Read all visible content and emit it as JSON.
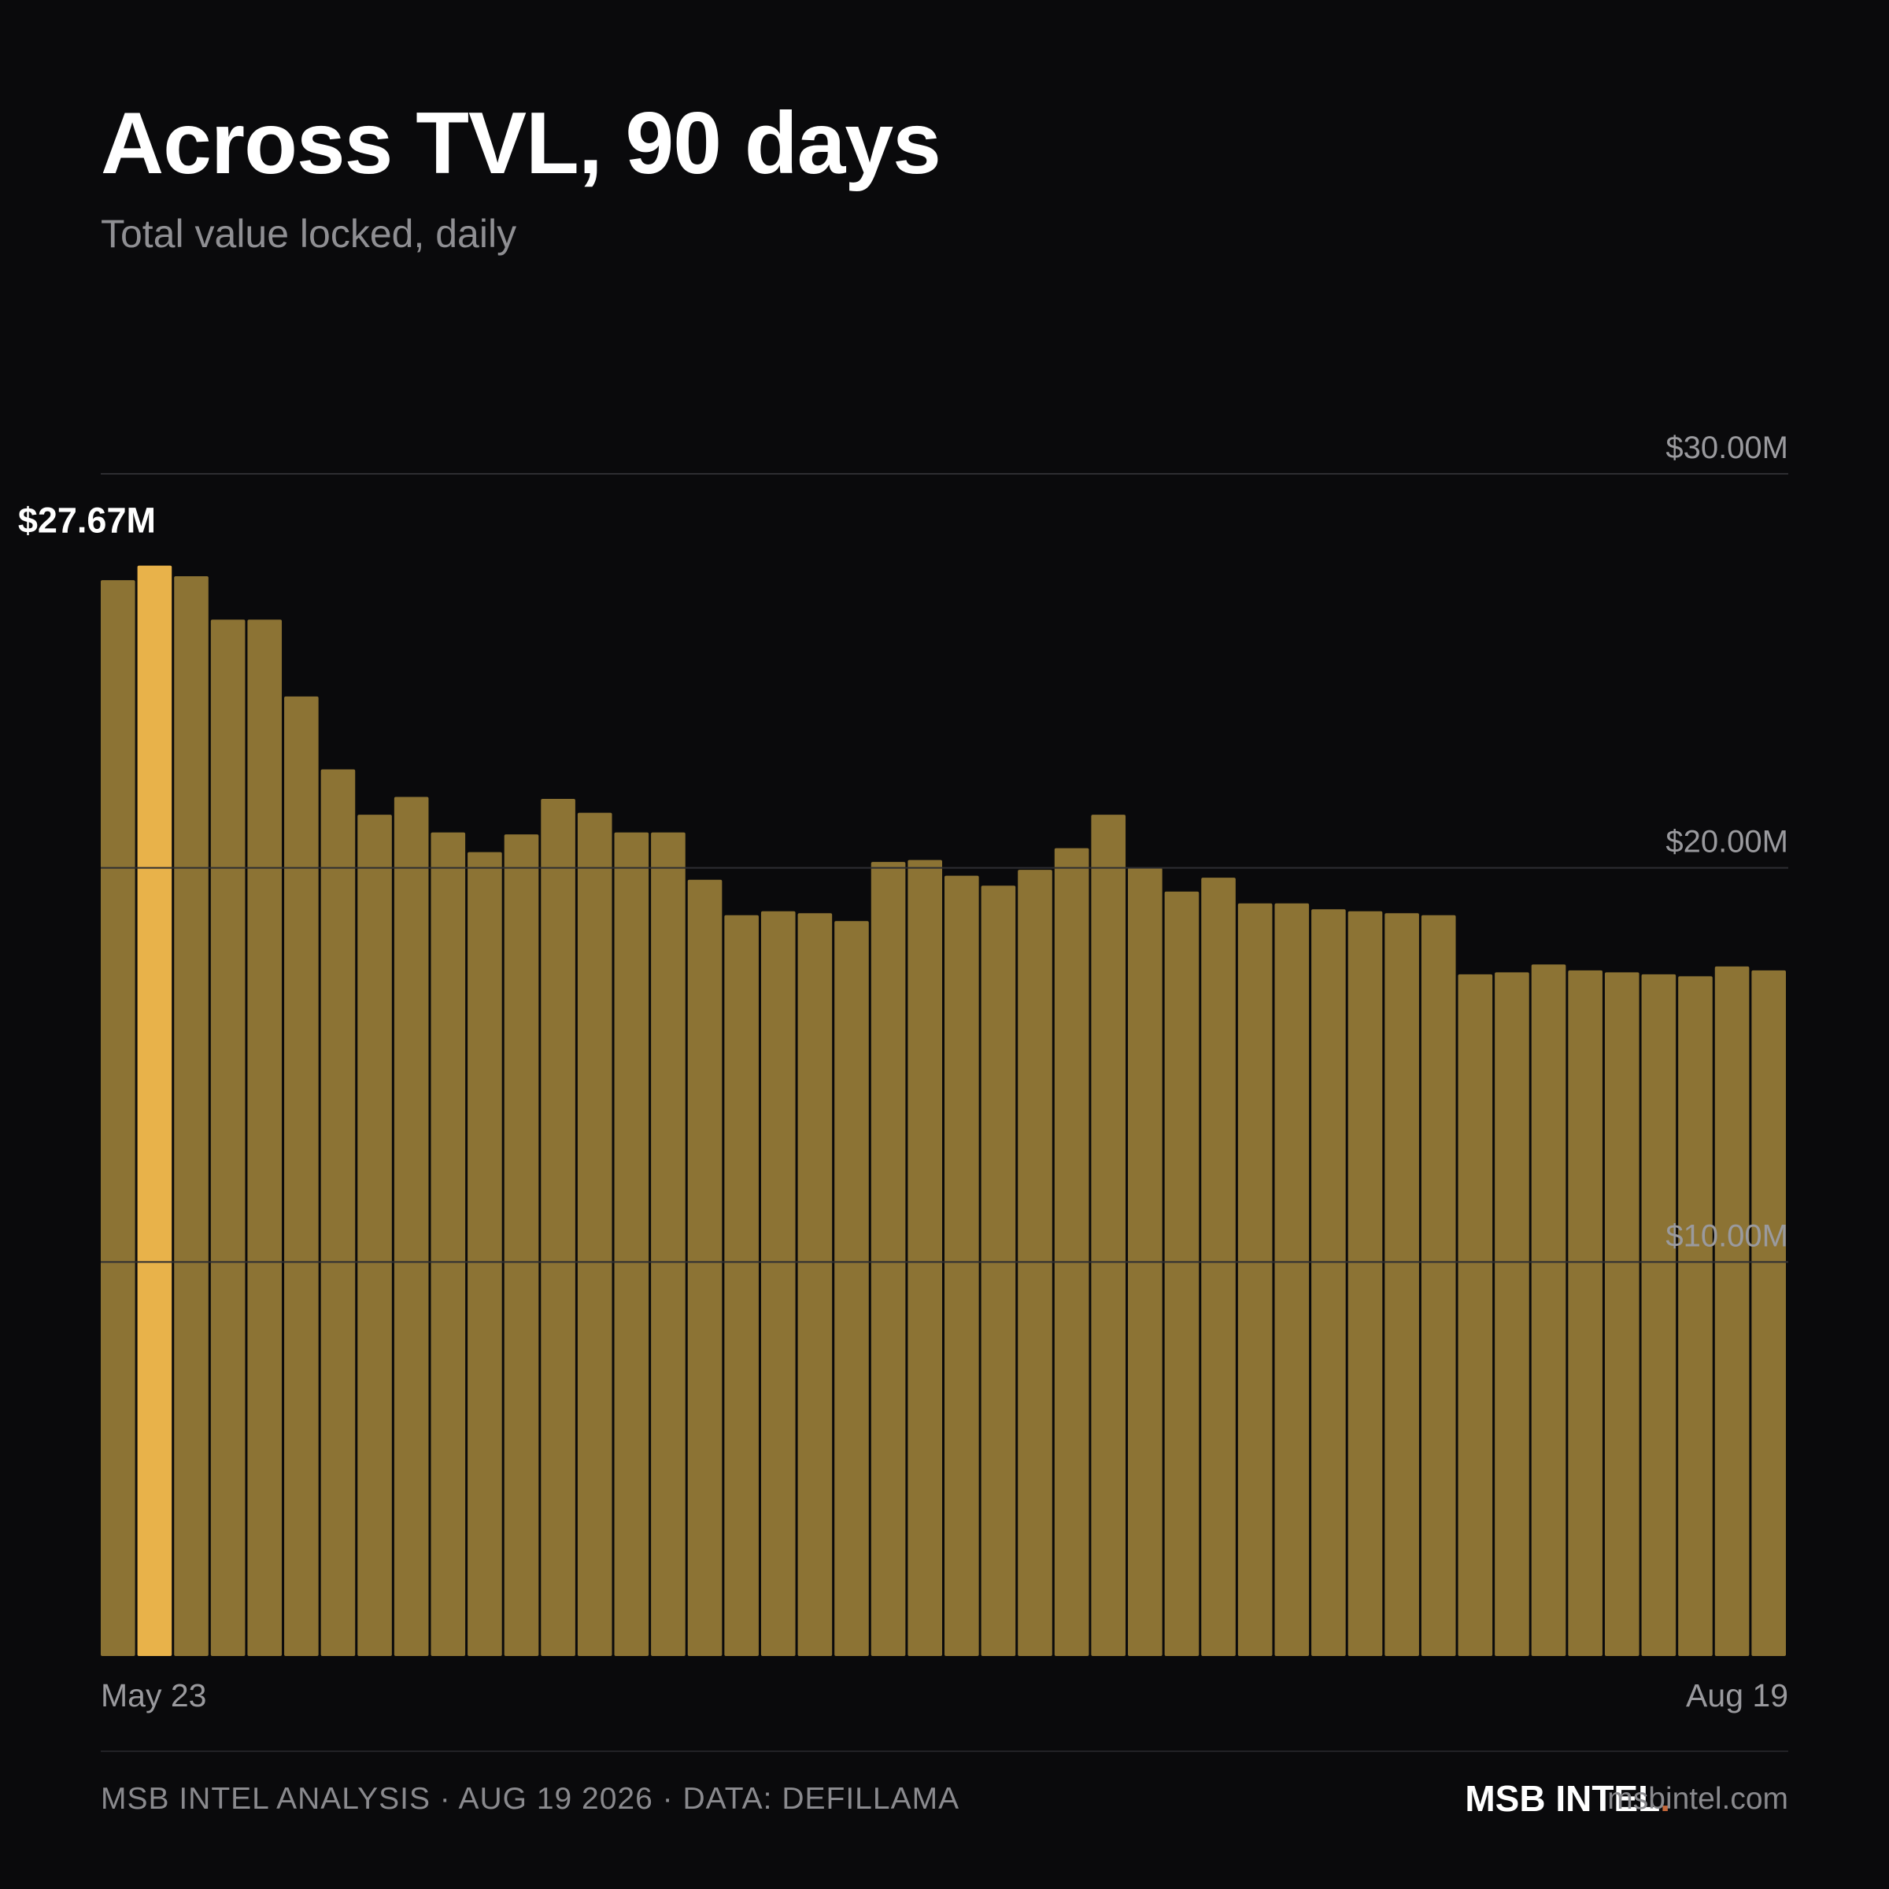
{
  "header": {
    "title": "Across TVL, 90 days",
    "subtitle": "Total value locked, daily"
  },
  "footer": {
    "credit": "MSB INTEL ANALYSIS · AUG 19 2026 · DATA: DEFILLAMA",
    "brand": "MSB INTEL",
    "brand_dot": ".",
    "site": "msbintel.com"
  },
  "colors": {
    "background": "#0a0a0c",
    "bar": "#8c7334",
    "bar_highlight": "#e8b24a",
    "gridline": "#2e2e32",
    "tick_label": "#9a9a9e",
    "brand_dot": "#c4673a"
  },
  "chart_data": {
    "type": "bar",
    "title": "Across TVL, 90 days",
    "subtitle": "Total value locked, daily",
    "ylim": [
      0,
      30
    ],
    "y_unit": "$M",
    "y_ticks": [
      {
        "value": 10,
        "label": "$10.00M"
      },
      {
        "value": 20,
        "label": "$20.00M"
      },
      {
        "value": 30,
        "label": "$30.00M"
      }
    ],
    "x_start_label": "May 23",
    "x_end_label": "Aug 19",
    "grid": true,
    "values": [
      27.3,
      27.67,
      27.4,
      26.3,
      26.3,
      24.35,
      22.5,
      21.35,
      21.8,
      20.9,
      20.4,
      20.85,
      21.75,
      21.4,
      20.9,
      20.9,
      19.7,
      18.8,
      18.9,
      18.85,
      18.65,
      20.15,
      20.2,
      19.8,
      19.55,
      19.95,
      20.5,
      21.35,
      20.0,
      19.4,
      19.75,
      19.1,
      19.1,
      18.95,
      18.9,
      18.85,
      18.8,
      17.3,
      17.35,
      17.55,
      17.4,
      17.35,
      17.3,
      17.25,
      17.5,
      17.4
    ],
    "highlight_index": 1,
    "highlight_label": "$27.67M"
  }
}
